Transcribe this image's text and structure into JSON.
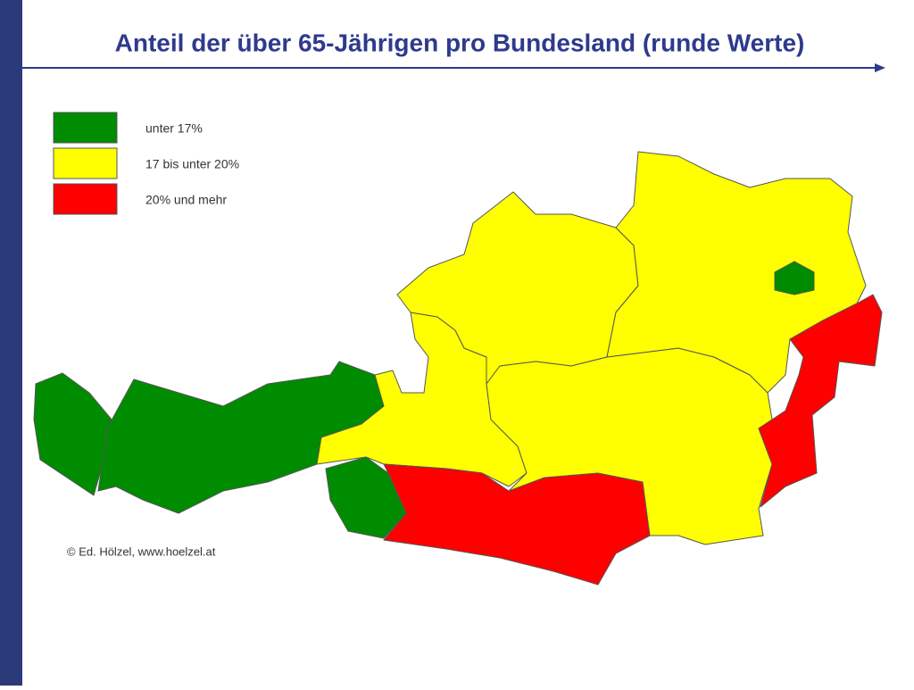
{
  "header": {
    "title": "Anteil der über 65-Jährigen pro Bundesland (runde Werte)"
  },
  "legend": [
    {
      "label": "unter 17%",
      "color": "#008c00"
    },
    {
      "label": "17 bis unter 20%",
      "color": "#ffff00"
    },
    {
      "label": "20% und mehr",
      "color": "#ff0000"
    }
  ],
  "footer": {
    "copyright": "© Ed. Hölzel, www.hoelzel.at"
  }
}
